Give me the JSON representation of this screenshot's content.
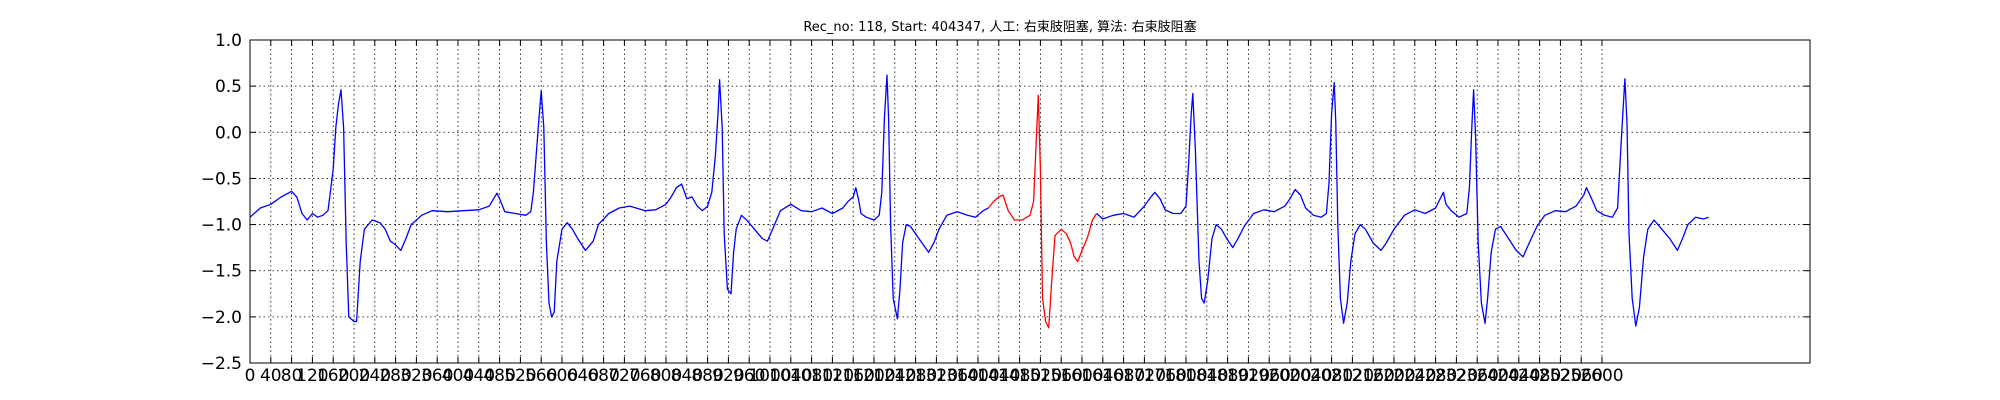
{
  "chart_data": {
    "type": "line",
    "title": "Rec_no: 118, Start: 404347, 人工: 右束肢阻塞, 算法: 右束肢阻塞",
    "xlabel": "",
    "ylabel": "",
    "xlim": [
      0,
      3000
    ],
    "ylim": [
      -2.5,
      1.0
    ],
    "grid": true,
    "y_ticks": [
      1.0,
      0.5,
      0.0,
      -0.5,
      -1.0,
      -1.5,
      -2.0,
      -2.5
    ],
    "y_tick_labels": [
      "1.0",
      "0.5",
      "0.0",
      "−0.5",
      "−1.0",
      "−1.5",
      "−2.0",
      "−2.5"
    ],
    "x_ticks": [
      0,
      40,
      80,
      120,
      160,
      200,
      240,
      280,
      320,
      360,
      400,
      440,
      480,
      520,
      560,
      600,
      640,
      680,
      720,
      760,
      800,
      840,
      880,
      920,
      960,
      1000,
      1040,
      1080,
      1120,
      1160,
      1200,
      1240,
      1280,
      1320,
      1360,
      1400,
      1440,
      1480,
      1520,
      1560,
      1600,
      1640,
      1680,
      1720,
      1760,
      1800,
      1840,
      1880,
      1920,
      1960,
      2000,
      2040,
      2080,
      2120,
      2160,
      2200,
      2240,
      2280,
      2320,
      2360,
      2400,
      2440,
      2480,
      2520,
      2560,
      2600
    ],
    "x_tick_labels": [
      "0",
      "40",
      "80",
      "120",
      "160",
      "200",
      "240",
      "280",
      "320",
      "360",
      "400",
      "440",
      "480",
      "520",
      "560",
      "600",
      "640",
      "680",
      "720",
      "760",
      "800",
      "840",
      "880",
      "920",
      "960",
      "1000",
      "1040",
      "1080",
      "1120",
      "1160",
      "1200",
      "1240",
      "1280",
      "1320",
      "1360",
      "1400",
      "1440",
      "1480",
      "1520",
      "1560",
      "1600",
      "1640",
      "1680",
      "1720",
      "1760",
      "1800",
      "1840",
      "1880",
      "1920",
      "1960",
      "2000",
      "2040",
      "2080",
      "2120",
      "2160",
      "2200",
      "2240",
      "2280",
      "2320",
      "2360",
      "2400",
      "2440",
      "2480",
      "2520",
      "2560",
      "2600"
    ],
    "series": [
      {
        "color": "#0000ff",
        "points": [
          [
            0,
            -0.92
          ],
          [
            20,
            -0.82
          ],
          [
            40,
            -0.78
          ],
          [
            60,
            -0.7
          ],
          [
            80,
            -0.64
          ],
          [
            90,
            -0.7
          ],
          [
            100,
            -0.88
          ],
          [
            110,
            -0.95
          ],
          [
            120,
            -0.88
          ],
          [
            130,
            -0.92
          ],
          [
            140,
            -0.9
          ],
          [
            150,
            -0.85
          ],
          [
            160,
            -0.4
          ],
          [
            165,
            0.05
          ],
          [
            170,
            0.3
          ],
          [
            175,
            0.46
          ],
          [
            180,
            0.05
          ],
          [
            185,
            -1.2
          ],
          [
            190,
            -2.0
          ],
          [
            200,
            -2.05
          ],
          [
            205,
            -2.05
          ],
          [
            212,
            -1.4
          ],
          [
            220,
            -1.05
          ],
          [
            235,
            -0.95
          ],
          [
            250,
            -0.98
          ],
          [
            260,
            -1.05
          ],
          [
            270,
            -1.18
          ],
          [
            280,
            -1.22
          ],
          [
            290,
            -1.28
          ],
          [
            300,
            -1.15
          ],
          [
            310,
            -1.0
          ],
          [
            330,
            -0.9
          ],
          [
            350,
            -0.85
          ],
          [
            380,
            -0.86
          ],
          [
            410,
            -0.85
          ],
          [
            440,
            -0.84
          ],
          [
            460,
            -0.8
          ],
          [
            475,
            -0.66
          ],
          [
            480,
            -0.72
          ],
          [
            490,
            -0.86
          ],
          [
            510,
            -0.88
          ],
          [
            530,
            -0.9
          ],
          [
            540,
            -0.86
          ],
          [
            545,
            -0.65
          ],
          [
            555,
            0.1
          ],
          [
            560,
            0.45
          ],
          [
            565,
            0.05
          ],
          [
            570,
            -1.2
          ],
          [
            575,
            -1.85
          ],
          [
            580,
            -2.0
          ],
          [
            585,
            -1.95
          ],
          [
            590,
            -1.4
          ],
          [
            600,
            -1.05
          ],
          [
            610,
            -0.98
          ],
          [
            620,
            -1.05
          ],
          [
            630,
            -1.15
          ],
          [
            645,
            -1.28
          ],
          [
            660,
            -1.18
          ],
          [
            670,
            -1.0
          ],
          [
            690,
            -0.88
          ],
          [
            710,
            -0.82
          ],
          [
            730,
            -0.8
          ],
          [
            760,
            -0.85
          ],
          [
            780,
            -0.84
          ],
          [
            800,
            -0.78
          ],
          [
            810,
            -0.7
          ],
          [
            820,
            -0.6
          ],
          [
            830,
            -0.56
          ],
          [
            840,
            -0.72
          ],
          [
            850,
            -0.7
          ],
          [
            860,
            -0.8
          ],
          [
            870,
            -0.85
          ],
          [
            880,
            -0.8
          ],
          [
            888,
            -0.65
          ],
          [
            895,
            -0.25
          ],
          [
            900,
            0.2
          ],
          [
            903,
            0.57
          ],
          [
            908,
            0.05
          ],
          [
            912,
            -1.1
          ],
          [
            918,
            -1.7
          ],
          [
            925,
            -1.75
          ],
          [
            930,
            -1.3
          ],
          [
            935,
            -1.05
          ],
          [
            945,
            -0.9
          ],
          [
            955,
            -0.95
          ],
          [
            970,
            -1.05
          ],
          [
            985,
            -1.15
          ],
          [
            995,
            -1.18
          ],
          [
            1005,
            -1.05
          ],
          [
            1020,
            -0.85
          ],
          [
            1040,
            -0.78
          ],
          [
            1060,
            -0.85
          ],
          [
            1080,
            -0.86
          ],
          [
            1100,
            -0.82
          ],
          [
            1120,
            -0.88
          ],
          [
            1140,
            -0.82
          ],
          [
            1150,
            -0.75
          ],
          [
            1160,
            -0.7
          ],
          [
            1165,
            -0.6
          ],
          [
            1170,
            -0.72
          ],
          [
            1175,
            -0.88
          ],
          [
            1185,
            -0.92
          ],
          [
            1200,
            -0.95
          ],
          [
            1210,
            -0.9
          ],
          [
            1215,
            -0.65
          ],
          [
            1220,
            0.15
          ],
          [
            1225,
            0.62
          ],
          [
            1228,
            0.15
          ],
          [
            1232,
            -1.0
          ],
          [
            1237,
            -1.8
          ],
          [
            1245,
            -2.02
          ],
          [
            1250,
            -1.7
          ],
          [
            1255,
            -1.2
          ],
          [
            1262,
            -1.0
          ],
          [
            1270,
            -1.02
          ],
          [
            1280,
            -1.1
          ],
          [
            1290,
            -1.18
          ],
          [
            1305,
            -1.3
          ],
          [
            1315,
            -1.2
          ],
          [
            1325,
            -1.05
          ],
          [
            1340,
            -0.9
          ],
          [
            1360,
            -0.86
          ],
          [
            1380,
            -0.9
          ],
          [
            1395,
            -0.92
          ],
          [
            1410,
            -0.85
          ],
          [
            1420,
            -0.82
          ]
        ]
      },
      {
        "color": "#ff0000",
        "points": [
          [
            1420,
            -0.82
          ],
          [
            1430,
            -0.75
          ],
          [
            1440,
            -0.7
          ],
          [
            1448,
            -0.68
          ],
          [
            1458,
            -0.85
          ],
          [
            1470,
            -0.95
          ],
          [
            1485,
            -0.95
          ],
          [
            1500,
            -0.9
          ],
          [
            1507,
            -0.75
          ],
          [
            1512,
            -0.1
          ],
          [
            1516,
            0.4
          ],
          [
            1520,
            -0.4
          ],
          [
            1524,
            -1.8
          ],
          [
            1530,
            -2.05
          ],
          [
            1536,
            -2.12
          ],
          [
            1542,
            -1.6
          ],
          [
            1548,
            -1.12
          ],
          [
            1560,
            -1.05
          ],
          [
            1570,
            -1.1
          ],
          [
            1578,
            -1.2
          ],
          [
            1585,
            -1.35
          ],
          [
            1592,
            -1.4
          ],
          [
            1600,
            -1.28
          ],
          [
            1610,
            -1.15
          ],
          [
            1620,
            -0.95
          ],
          [
            1628,
            -0.88
          ]
        ]
      },
      {
        "color": "#0000ff",
        "points": [
          [
            1628,
            -0.88
          ],
          [
            1640,
            -0.94
          ],
          [
            1660,
            -0.9
          ],
          [
            1680,
            -0.88
          ],
          [
            1700,
            -0.92
          ],
          [
            1720,
            -0.8
          ],
          [
            1730,
            -0.72
          ],
          [
            1740,
            -0.65
          ],
          [
            1750,
            -0.72
          ],
          [
            1760,
            -0.84
          ],
          [
            1775,
            -0.88
          ],
          [
            1790,
            -0.88
          ],
          [
            1800,
            -0.8
          ],
          [
            1805,
            -0.35
          ],
          [
            1810,
            0.2
          ],
          [
            1813,
            0.42
          ],
          [
            1818,
            -0.2
          ],
          [
            1825,
            -1.4
          ],
          [
            1830,
            -1.8
          ],
          [
            1835,
            -1.85
          ],
          [
            1842,
            -1.6
          ],
          [
            1850,
            -1.15
          ],
          [
            1858,
            -1.0
          ],
          [
            1868,
            -1.05
          ],
          [
            1878,
            -1.15
          ],
          [
            1890,
            -1.25
          ],
          [
            1900,
            -1.15
          ],
          [
            1912,
            -1.02
          ],
          [
            1930,
            -0.88
          ],
          [
            1950,
            -0.84
          ],
          [
            1970,
            -0.86
          ],
          [
            1990,
            -0.8
          ],
          [
            2000,
            -0.72
          ],
          [
            2010,
            -0.62
          ],
          [
            2020,
            -0.68
          ],
          [
            2030,
            -0.82
          ],
          [
            2045,
            -0.9
          ],
          [
            2060,
            -0.92
          ],
          [
            2070,
            -0.88
          ],
          [
            2075,
            -0.55
          ],
          [
            2080,
            0.2
          ],
          [
            2085,
            0.54
          ],
          [
            2088,
            0.1
          ],
          [
            2092,
            -1.0
          ],
          [
            2097,
            -1.8
          ],
          [
            2103,
            -2.07
          ],
          [
            2110,
            -1.85
          ],
          [
            2117,
            -1.4
          ],
          [
            2125,
            -1.1
          ],
          [
            2135,
            -1.0
          ],
          [
            2145,
            -1.05
          ],
          [
            2160,
            -1.2
          ],
          [
            2175,
            -1.28
          ],
          [
            2185,
            -1.2
          ],
          [
            2200,
            -1.05
          ],
          [
            2220,
            -0.9
          ],
          [
            2240,
            -0.84
          ],
          [
            2260,
            -0.88
          ],
          [
            2280,
            -0.82
          ],
          [
            2295,
            -0.65
          ],
          [
            2300,
            -0.78
          ],
          [
            2310,
            -0.85
          ],
          [
            2325,
            -0.92
          ],
          [
            2340,
            -0.88
          ],
          [
            2345,
            -0.6
          ],
          [
            2350,
            0.1
          ],
          [
            2353,
            0.46
          ],
          [
            2357,
            -0.05
          ],
          [
            2362,
            -1.2
          ],
          [
            2368,
            -1.85
          ],
          [
            2375,
            -2.07
          ],
          [
            2380,
            -1.8
          ],
          [
            2387,
            -1.3
          ],
          [
            2395,
            -1.05
          ],
          [
            2405,
            -1.02
          ],
          [
            2420,
            -1.15
          ],
          [
            2435,
            -1.28
          ],
          [
            2448,
            -1.35
          ],
          [
            2460,
            -1.2
          ],
          [
            2475,
            -1.02
          ],
          [
            2490,
            -0.9
          ],
          [
            2510,
            -0.85
          ],
          [
            2530,
            -0.86
          ],
          [
            2550,
            -0.8
          ],
          [
            2565,
            -0.68
          ],
          [
            2570,
            -0.6
          ],
          [
            2580,
            -0.72
          ],
          [
            2590,
            -0.85
          ],
          [
            2605,
            -0.9
          ],
          [
            2620,
            -0.92
          ],
          [
            2630,
            -0.82
          ],
          [
            2635,
            -0.3
          ],
          [
            2640,
            0.2
          ],
          [
            2644,
            0.58
          ],
          [
            2648,
            0.1
          ],
          [
            2652,
            -1.1
          ],
          [
            2658,
            -1.8
          ],
          [
            2665,
            -2.1
          ],
          [
            2672,
            -1.9
          ],
          [
            2680,
            -1.35
          ],
          [
            2688,
            -1.05
          ],
          [
            2700,
            -0.95
          ],
          [
            2715,
            -1.05
          ],
          [
            2730,
            -1.15
          ],
          [
            2745,
            -1.28
          ],
          [
            2755,
            -1.15
          ],
          [
            2765,
            -1.0
          ],
          [
            2780,
            -0.92
          ],
          [
            2795,
            -0.94
          ],
          [
            2805,
            -0.92
          ]
        ]
      }
    ]
  }
}
